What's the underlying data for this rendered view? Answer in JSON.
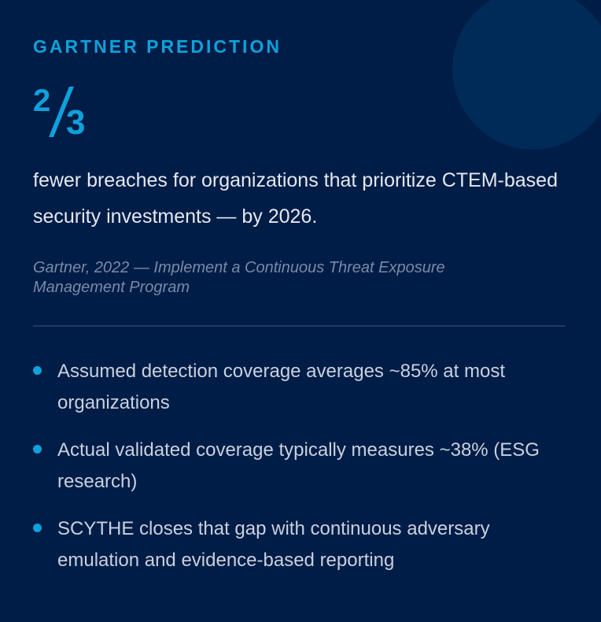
{
  "colors": {
    "background": "#001d47",
    "accent": "#0ea2dc",
    "circle": "#002a57"
  },
  "eyebrow": "GARTNER PREDICTION",
  "fraction": {
    "numerator": "2",
    "denominator": "3"
  },
  "lead": "fewer breaches for organizations that prioritize CTEM-based security investments — by 2026.",
  "citation": "Gartner, 2022 — Implement a Continuous Threat Exposure Management Program",
  "bullets": [
    {
      "text": "Assumed detection coverage averages ~85% at most organizations"
    },
    {
      "text": "Actual validated coverage typically measures ~38% (ESG research)"
    },
    {
      "text": "SCYTHE closes that gap with continuous adversary emulation and evidence-based reporting"
    }
  ]
}
